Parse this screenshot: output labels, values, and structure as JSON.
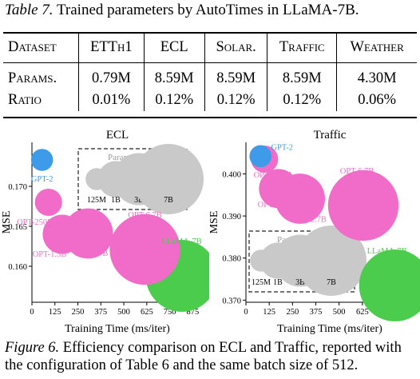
{
  "table_caption": {
    "label": "Table 7.",
    "text": "Trained parameters by AutoTimes in LLaMA-7B."
  },
  "table": {
    "headers": [
      "Dataset",
      "ETTh1",
      "ECL",
      "Solar.",
      "Traffic",
      "Weather"
    ],
    "rows": [
      [
        "Params.",
        "0.79M",
        "8.59M",
        "8.59M",
        "8.59M",
        "4.30M"
      ],
      [
        "Ratio",
        "0.01%",
        "0.12%",
        "0.12%",
        "0.12%",
        "0.06%"
      ]
    ]
  },
  "figure_caption": {
    "label": "Figure 6.",
    "text": "Efficiency comparison on ECL and Traffic, reported with the configuration of Table 6 and the same batch size of 512."
  },
  "colors": {
    "gpt": "#3d9be9",
    "opt": "#f16cc8",
    "llama": "#4ccc4c",
    "legend": "#c9c9c9"
  },
  "chart_data": [
    {
      "type": "scatter",
      "title": "ECL",
      "xlabel": "Training Time (ms/iter)",
      "ylabel": "MSE",
      "xlim": [
        0,
        930
      ],
      "ylim": [
        0.1555,
        0.1755
      ],
      "xticks": [
        0,
        125,
        250,
        375,
        500,
        625,
        750,
        875
      ],
      "yticks": [
        0.16,
        0.165,
        0.17
      ],
      "yticks_labels": [
        "0.160",
        "0.165",
        "0.170"
      ],
      "legend": {
        "title": "Params Count",
        "items": [
          "125M",
          "1B",
          "3B",
          "7B"
        ]
      },
      "points": [
        {
          "name": "GPT-2",
          "x": 55,
          "y": 0.1733,
          "params_b": 0.125,
          "color": "gpt"
        },
        {
          "name": "OPT-250M",
          "x": 90,
          "y": 0.168,
          "params_b": 0.35,
          "color": "opt"
        },
        {
          "name": "OPT-1.3B",
          "x": 165,
          "y": 0.164,
          "params_b": 1.3,
          "color": "opt"
        },
        {
          "name": "OPT-2.7B",
          "x": 305,
          "y": 0.1641,
          "params_b": 2.7,
          "color": "opt"
        },
        {
          "name": "OPT-6.7B",
          "x": 615,
          "y": 0.1621,
          "params_b": 6.7,
          "color": "opt"
        },
        {
          "name": "LLaMA-7B",
          "x": 815,
          "y": 0.1588,
          "params_b": 7.0,
          "color": "llama"
        }
      ]
    },
    {
      "type": "scatter",
      "title": "Traffic",
      "xlabel": "Training Time (ms/iter)",
      "ylabel": "MSE",
      "xlim": [
        0,
        900
      ],
      "ylim": [
        0.3695,
        0.4075
      ],
      "xticks": [
        0,
        125,
        250,
        375,
        500,
        625,
        750,
        875
      ],
      "yticks": [
        0.37,
        0.38,
        0.39,
        0.4
      ],
      "yticks_labels": [
        "0.370",
        "0.380",
        "0.390",
        "0.400"
      ],
      "legend": {
        "title": "Params Count",
        "items": [
          "125M",
          "1B",
          "3B",
          "7B"
        ]
      },
      "points": [
        {
          "name": "GPT-2",
          "x": 78,
          "y": 0.4042,
          "params_b": 0.125,
          "color": "gpt"
        },
        {
          "name": "OPT-250M",
          "x": 100,
          "y": 0.4035,
          "params_b": 0.35,
          "color": "opt"
        },
        {
          "name": "OPT-1.3B",
          "x": 175,
          "y": 0.3965,
          "params_b": 1.3,
          "color": "opt"
        },
        {
          "name": "OPT-2.7B",
          "x": 290,
          "y": 0.3941,
          "params_b": 2.7,
          "color": "opt"
        },
        {
          "name": "OPT-6.7B",
          "x": 630,
          "y": 0.3925,
          "params_b": 6.7,
          "color": "opt"
        },
        {
          "name": "LLaMA-7B",
          "x": 800,
          "y": 0.3735,
          "params_b": 7.0,
          "color": "llama"
        }
      ]
    }
  ]
}
